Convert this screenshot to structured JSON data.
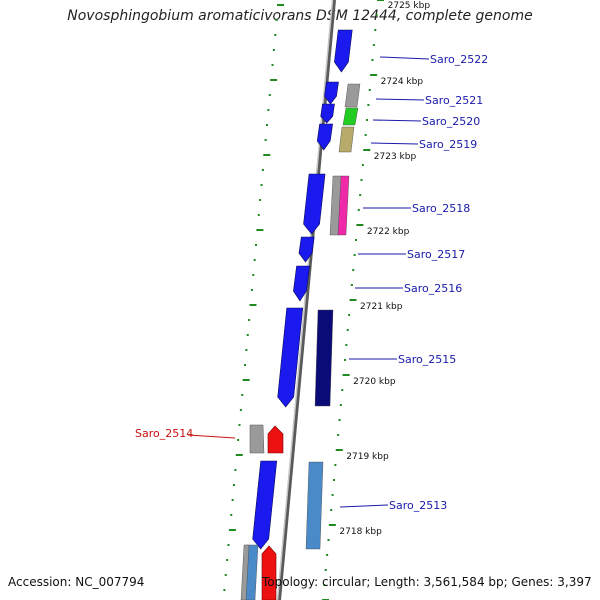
{
  "title": "Novosphingobium aromaticivorans DSM 12444, complete genome",
  "footer": {
    "accession": "Accession: NC_007794",
    "summary": "Topology: circular; Length: 3,561,584 bp; Genes: 3,397"
  },
  "colors": {
    "backbone": "#8a8a8a",
    "tick": "#1f8a1f",
    "blue": "#1a1aee",
    "navy": "#0b0b78",
    "steel": "#4a8ac8",
    "gray": "#9a9a9a",
    "green": "#22cc22",
    "khaki": "#b8aa6a",
    "magenta": "#ee2aa8",
    "red": "#ee1111",
    "label": "#1a1aaa",
    "label_red": "#cc1111"
  },
  "scale_labels": [
    "2725 kbp",
    "2724 kbp",
    "2723 kbp",
    "2722 kbp",
    "2721 kbp",
    "2720 kbp",
    "2719 kbp",
    "2718 kbp"
  ],
  "genes": [
    {
      "name": "Saro_2522",
      "strand": "plus",
      "color": "blue"
    },
    {
      "name": "Saro_2521",
      "strand": "plus",
      "color": "blue"
    },
    {
      "name": "Saro_2520",
      "strand": "plus",
      "color": "blue"
    },
    {
      "name": "Saro_2519",
      "strand": "plus",
      "color": "blue"
    },
    {
      "name": "Saro_2518",
      "strand": "plus",
      "color": "blue"
    },
    {
      "name": "Saro_2517",
      "strand": "plus",
      "color": "blue"
    },
    {
      "name": "Saro_2516",
      "strand": "plus",
      "color": "blue"
    },
    {
      "name": "Saro_2515",
      "strand": "plus",
      "color": "blue"
    },
    {
      "name": "Saro_2514",
      "strand": "minus",
      "color": "red"
    },
    {
      "name": "Saro_2513",
      "strand": "plus",
      "color": "blue"
    }
  ]
}
